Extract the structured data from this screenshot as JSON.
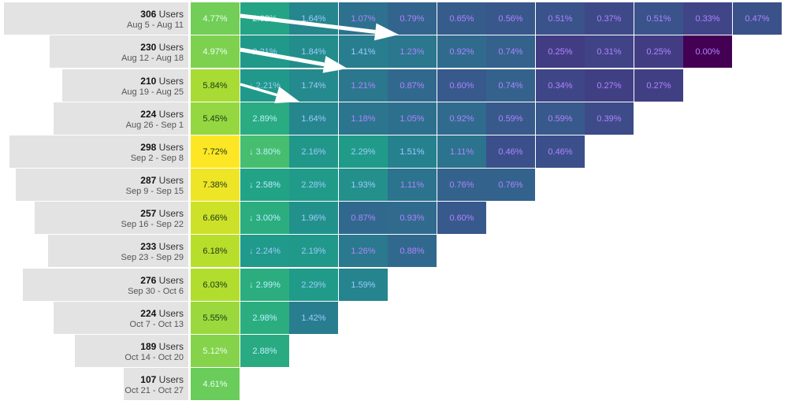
{
  "chart_data": {
    "type": "heatmap",
    "title": "",
    "users_suffix": "Users",
    "cohorts": [
      {
        "users": 306,
        "range": "Aug 5 - Aug 11",
        "values": [
          "4.77%",
          "2.62%",
          "1.64%",
          "1.07%",
          "0.79%",
          "0.65%",
          "0.56%",
          "0.51%",
          "0.37%",
          "0.51%",
          "0.33%",
          "0.47%"
        ],
        "down_cells": []
      },
      {
        "users": 230,
        "range": "Aug 12 - Aug 18",
        "values": [
          "4.97%",
          "2.21%",
          "1.84%",
          "1.41%",
          "1.23%",
          "0.92%",
          "0.74%",
          "0.25%",
          "0.31%",
          "0.25%",
          "0.00%"
        ],
        "down_cells": []
      },
      {
        "users": 210,
        "range": "Aug 19 - Aug 25",
        "values": [
          "5.84%",
          "2.21%",
          "1.74%",
          "1.21%",
          "0.87%",
          "0.60%",
          "0.74%",
          "0.34%",
          "0.27%",
          "0.27%"
        ],
        "down_cells": [
          1
        ]
      },
      {
        "users": 224,
        "range": "Aug 26 - Sep 1",
        "values": [
          "5.45%",
          "2.89%",
          "1.64%",
          "1.18%",
          "1.05%",
          "0.92%",
          "0.59%",
          "0.59%",
          "0.39%"
        ],
        "down_cells": []
      },
      {
        "users": 298,
        "range": "Sep 2 - Sep 8",
        "values": [
          "7.72%",
          "3.80%",
          "2.16%",
          "2.29%",
          "1.51%",
          "1.11%",
          "0.46%",
          "0.46%"
        ],
        "down_cells": [
          1
        ]
      },
      {
        "users": 287,
        "range": "Sep 9 - Sep 15",
        "values": [
          "7.38%",
          "2.58%",
          "2.28%",
          "1.93%",
          "1.11%",
          "0.76%",
          "0.76%"
        ],
        "down_cells": [
          1
        ]
      },
      {
        "users": 257,
        "range": "Sep 16 - Sep 22",
        "values": [
          "6.66%",
          "3.00%",
          "1.96%",
          "0.87%",
          "0.93%",
          "0.60%"
        ],
        "down_cells": [
          1
        ]
      },
      {
        "users": 233,
        "range": "Sep 23 - Sep 29",
        "values": [
          "6.18%",
          "2.24%",
          "2.19%",
          "1.26%",
          "0.88%"
        ],
        "down_cells": [
          1
        ]
      },
      {
        "users": 276,
        "range": "Sep 30 - Oct 6",
        "values": [
          "6.03%",
          "2.99%",
          "2.29%",
          "1.59%"
        ],
        "down_cells": [
          1
        ]
      },
      {
        "users": 224,
        "range": "Oct 7 - Oct 13",
        "values": [
          "5.55%",
          "2.98%",
          "1.42%"
        ],
        "down_cells": []
      },
      {
        "users": 189,
        "range": "Oct 14 - Oct 20",
        "values": [
          "5.12%",
          "2.88%"
        ],
        "down_cells": []
      },
      {
        "users": 107,
        "range": "Oct 21 - Oct 27",
        "values": [
          "4.61%"
        ],
        "down_cells": []
      }
    ],
    "down_marker": "↓",
    "color_scale": "viridis",
    "color_domain": [
      0,
      7.72
    ],
    "annotations": [
      "arrow",
      "arrow",
      "arrow"
    ]
  }
}
